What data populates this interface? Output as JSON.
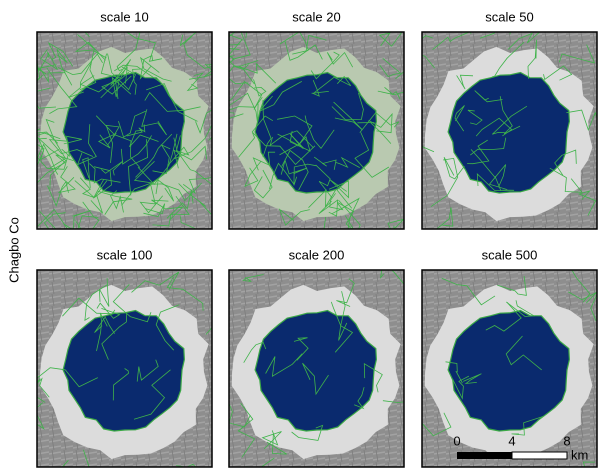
{
  "row_label": "Chagbo Co",
  "panels": [
    {
      "title": "scale 10"
    },
    {
      "title": "scale 20"
    },
    {
      "title": "scale 50"
    },
    {
      "title": "scale 100"
    },
    {
      "title": "scale 200"
    },
    {
      "title": "scale 500"
    }
  ],
  "scale_bar": {
    "ticks": [
      "0",
      "4",
      "8"
    ],
    "unit": "km"
  }
}
